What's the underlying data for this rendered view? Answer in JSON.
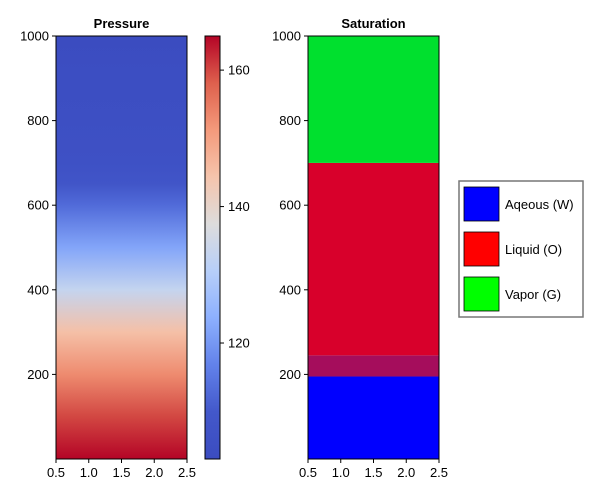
{
  "chart_data": [
    {
      "type": "heatmap",
      "title": "Pressure",
      "xlabel": "",
      "ylabel": "",
      "xlim": [
        0.5,
        2.5
      ],
      "ylim": [
        0,
        1000
      ],
      "x_ticks": [
        "0.5",
        "1.0",
        "1.5",
        "2.0",
        "2.5"
      ],
      "y_ticks": [
        "200",
        "400",
        "600",
        "800",
        "1000"
      ],
      "colormap": "coolwarm",
      "colormap_stops": [
        "#3b4cc0",
        "#4358cb",
        "#6282ea",
        "#8db0fe",
        "#b7cff9",
        "#dddcdc",
        "#f5c4ac",
        "#f49a7b",
        "#de604d",
        "#b40426"
      ],
      "colorbar": {
        "range": [
          103,
          165
        ],
        "ticks": [
          "120",
          "140",
          "160"
        ]
      },
      "profile": {
        "y": [
          0,
          100,
          200,
          300,
          400,
          500,
          600,
          650,
          700,
          800,
          900,
          1000
        ],
        "values": [
          165,
          160,
          153,
          145,
          133,
          122,
          113,
          108,
          106,
          105,
          104,
          103
        ]
      }
    },
    {
      "type": "heatmap",
      "title": "Saturation",
      "xlabel": "",
      "ylabel": "",
      "xlim": [
        0.5,
        2.5
      ],
      "ylim": [
        0,
        1000
      ],
      "x_ticks": [
        "0.5",
        "1.0",
        "1.5",
        "2.0",
        "2.5"
      ],
      "y_ticks": [
        "200",
        "400",
        "600",
        "800",
        "1000"
      ],
      "phases": [
        {
          "y_from": 0,
          "y_to": 195,
          "color": "#0000ff"
        },
        {
          "y_from": 195,
          "y_to": 245,
          "color": "#a50d5c"
        },
        {
          "y_from": 245,
          "y_to": 700,
          "color": "#d8002b"
        },
        {
          "y_from": 700,
          "y_to": 1000,
          "color": "#00e02e"
        }
      ],
      "legend": {
        "position": "right",
        "entries": [
          {
            "label": "Aqeous (W)",
            "color": "#0000ff"
          },
          {
            "label": "Liquid (O)",
            "color": "#ff0000"
          },
          {
            "label": "Vapor (G)",
            "color": "#00ff00"
          }
        ]
      }
    }
  ]
}
